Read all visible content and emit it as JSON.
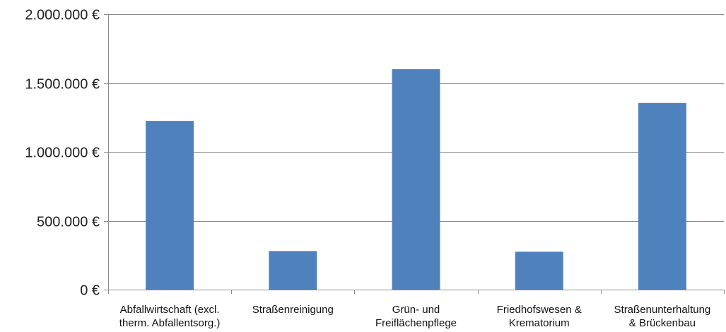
{
  "chart_data": {
    "type": "bar",
    "title": "",
    "xlabel": "",
    "ylabel": "",
    "categories": [
      [
        "Abfallwirtschaft (excl.",
        "therm. Abfallentsorg.)"
      ],
      [
        "Straßenreinigung"
      ],
      [
        "Grün- und",
        "Freiflächenpflege"
      ],
      [
        "Friedhofswesen &",
        "Krematorium"
      ],
      [
        "Straßenunterhaltung",
        "& Brückenbau"
      ]
    ],
    "values": [
      1225000,
      280000,
      1600000,
      275000,
      1355000
    ],
    "ylim": [
      0,
      2000000
    ],
    "yticks": [
      0,
      500000,
      1000000,
      1500000,
      2000000
    ],
    "ytick_labels": [
      "0 €",
      "500.000 €",
      "1.000.000 €",
      "1.500.000 €",
      "2.000.000 €"
    ],
    "grid": true,
    "legend": "none",
    "bar_color": "#4F81BD",
    "grid_color": "#8C8C8C",
    "axis_color": "#8C8C8C"
  }
}
